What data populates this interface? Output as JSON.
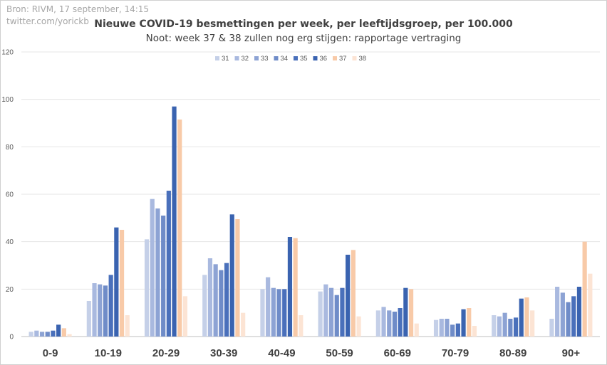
{
  "header": {
    "source_line1": "Bron: RIVM, 17 september, 14:15",
    "source_line2": "twitter.com/yorickb"
  },
  "chart_data": {
    "type": "bar",
    "title": "Nieuwe COVID-19 besmettingen per week, per leeftijdsgroep, per 100.000",
    "subtitle": "Noot: week 37 & 38 zullen nog erg stijgen: rapportage vertraging",
    "categories": [
      "0-9",
      "10-19",
      "20-29",
      "30-39",
      "40-49",
      "50-59",
      "60-69",
      "70-79",
      "80-89",
      "90+"
    ],
    "ylim": [
      0,
      120
    ],
    "yticks": [
      0,
      20,
      40,
      60,
      80,
      100,
      120
    ],
    "grid": true,
    "legend_position": "top",
    "series": [
      {
        "name": "31",
        "color": "#c5d0e8",
        "values": [
          2,
          15,
          41,
          26,
          20,
          19,
          11,
          7,
          9,
          7.5
        ]
      },
      {
        "name": "32",
        "color": "#a9b9df",
        "values": [
          2.5,
          22.5,
          58,
          33,
          25,
          22,
          12.5,
          7.5,
          8.5,
          21
        ]
      },
      {
        "name": "33",
        "color": "#8da3d4",
        "values": [
          2,
          22,
          54,
          30.5,
          20.5,
          20.5,
          11,
          7.5,
          10,
          18.5
        ]
      },
      {
        "name": "34",
        "color": "#6f8cc8",
        "values": [
          2,
          21.5,
          51,
          28,
          20,
          17.5,
          10.5,
          5,
          7.5,
          14.5
        ]
      },
      {
        "name": "35",
        "color": "#4a70bb",
        "values": [
          2.5,
          26,
          61.5,
          31,
          20,
          20.5,
          12,
          5.5,
          8,
          17
        ]
      },
      {
        "name": "36",
        "color": "#3a63b0",
        "values": [
          5,
          46,
          97,
          51.5,
          42,
          34.5,
          20.5,
          11.5,
          16,
          21
        ]
      },
      {
        "name": "37",
        "color": "#f8caa8",
        "values": [
          3.5,
          45,
          91.5,
          49.5,
          41.5,
          36.5,
          20,
          12,
          16.5,
          40
        ]
      },
      {
        "name": "38",
        "color": "#fce4d4",
        "values": [
          1,
          9,
          17,
          10,
          9,
          8.5,
          5.5,
          4.5,
          11,
          26.5
        ]
      }
    ]
  }
}
